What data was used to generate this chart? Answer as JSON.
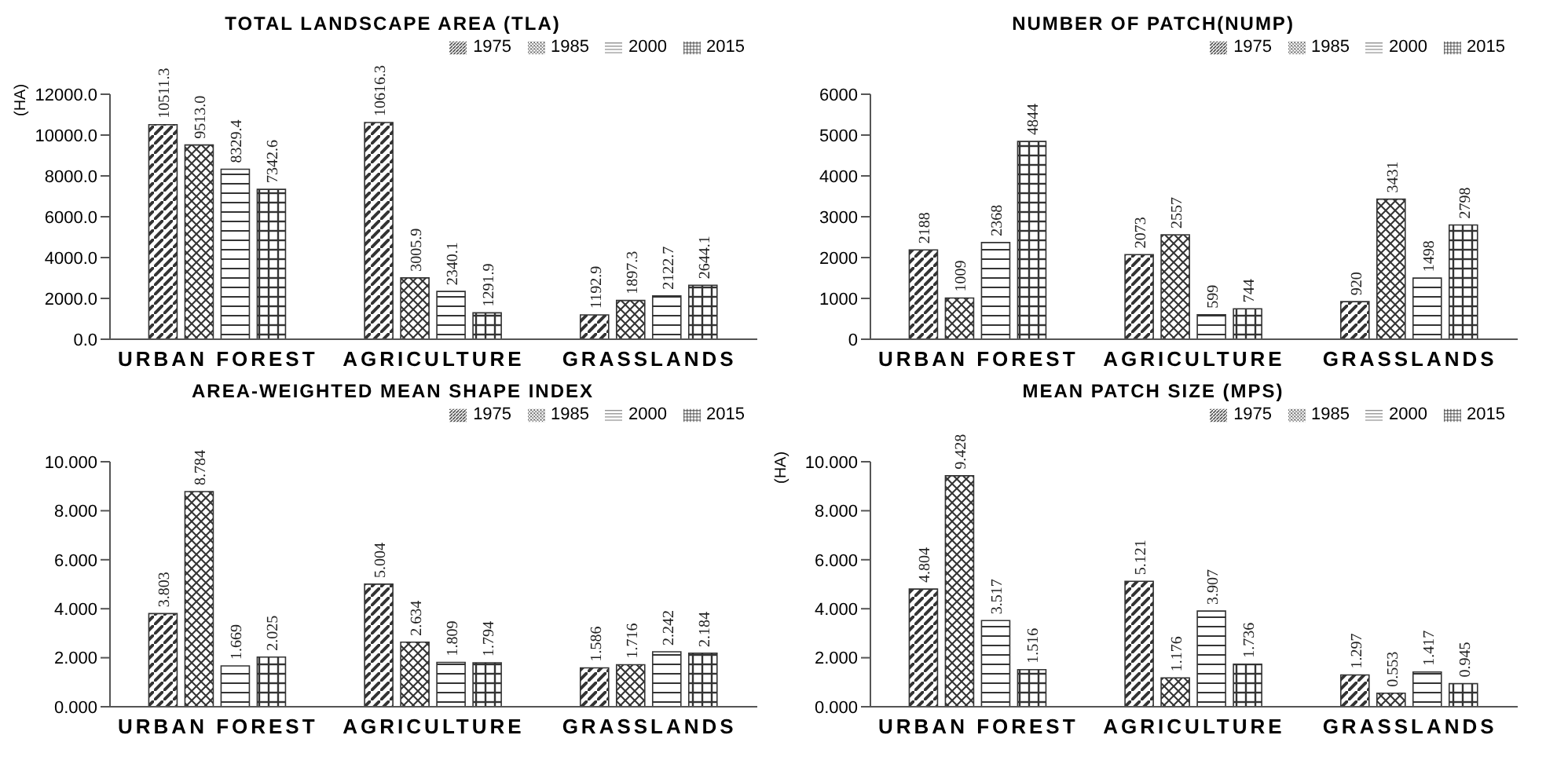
{
  "chart_data": [
    {
      "type": "bar",
      "title": "TOTAL LANDSCAPE AREA (TLA)",
      "ylabel": "(HA)",
      "categories": [
        "URBAN FOREST",
        "AGRICULTURE",
        "GRASSLANDS"
      ],
      "series": [
        {
          "name": "1975",
          "color": "#333333",
          "values": [
            10511.3,
            10616.3,
            1192.9
          ],
          "value_labels": [
            "10511.3",
            "10616.3",
            "1192.9"
          ]
        },
        {
          "name": "1985",
          "color": "#333333",
          "values": [
            9513.0,
            3005.9,
            1897.3
          ],
          "value_labels": [
            "9513.0",
            "3005.9",
            "1897.3"
          ]
        },
        {
          "name": "2000",
          "color": "#333333",
          "values": [
            8329.4,
            2340.1,
            2122.7
          ],
          "value_labels": [
            "8329.4",
            "2340.1",
            "2122.7"
          ]
        },
        {
          "name": "2015",
          "color": "#333333",
          "values": [
            7342.6,
            1291.9,
            2644.1
          ],
          "value_labels": [
            "7342.6",
            "1291.9",
            "2644.1"
          ]
        }
      ],
      "ylim": [
        0,
        12000
      ],
      "yticks": [
        {
          "value": 0,
          "label": "0.0"
        },
        {
          "value": 2000,
          "label": "2000.0"
        },
        {
          "value": 4000,
          "label": "4000.0"
        },
        {
          "value": 6000,
          "label": "6000.0"
        },
        {
          "value": 8000,
          "label": "8000.0"
        },
        {
          "value": 10000,
          "label": "10000.0"
        },
        {
          "value": 12000,
          "label": "12000.0"
        }
      ],
      "legend": "top right"
    },
    {
      "type": "bar",
      "title": "NUMBER OF PATCH(NUMP)",
      "categories": [
        "URBAN FOREST",
        "AGRICULTURE",
        "GRASSLANDS"
      ],
      "series": [
        {
          "name": "1975",
          "color": "#333333",
          "values": [
            2188,
            2073,
            920
          ]
        },
        {
          "name": "1985",
          "color": "#333333",
          "values": [
            1009,
            2557,
            3431
          ]
        },
        {
          "name": "2000",
          "color": "#333333",
          "values": [
            2368,
            599,
            1498
          ]
        },
        {
          "name": "2015",
          "color": "#333333",
          "values": [
            4844,
            744,
            2798
          ]
        }
      ],
      "ylim": [
        0,
        6000
      ],
      "yticks": [
        0,
        1000,
        2000,
        3000,
        4000,
        5000,
        6000
      ],
      "data_labels": true,
      "legend": "top right"
    },
    {
      "type": "bar",
      "title": "AREA-WEIGHTED MEAN SHAPE INDEX",
      "categories": [
        "URBAN FOREST",
        "AGRICULTURE",
        "GRASSLANDS"
      ],
      "series": [
        {
          "name": "1975",
          "color": "#333333",
          "values": [
            3.803,
            5.004,
            1.586
          ]
        },
        {
          "name": "1985",
          "color": "#333333",
          "values": [
            8.784,
            2.634,
            1.716
          ]
        },
        {
          "name": "2000",
          "color": "#333333",
          "values": [
            1.669,
            1.809,
            2.242
          ]
        },
        {
          "name": "2015",
          "color": "#333333",
          "values": [
            2.025,
            1.794,
            2.184
          ]
        }
      ],
      "ylim": [
        0,
        10
      ],
      "yticks": [
        {
          "value": 0,
          "label": "0.000"
        },
        {
          "value": 2,
          "label": "2.000"
        },
        {
          "value": 4,
          "label": "4.000"
        },
        {
          "value": 6,
          "label": "6.000"
        },
        {
          "value": 8,
          "label": "8.000"
        },
        {
          "value": 10,
          "label": "10.000"
        }
      ],
      "data_labels": true,
      "legend": "top right"
    },
    {
      "type": "bar",
      "title": "MEAN PATCH SIZE (MPS)",
      "ylabel": "(HA)",
      "categories": [
        "URBAN FOREST",
        "AGRICULTURE",
        "GRASSLANDS"
      ],
      "series": [
        {
          "name": "1975",
          "color": "#333333",
          "values": [
            4.804,
            5.121,
            1.297
          ]
        },
        {
          "name": "1985",
          "color": "#333333",
          "values": [
            9.428,
            1.176,
            0.553
          ]
        },
        {
          "name": "2000",
          "color": "#333333",
          "values": [
            3.517,
            3.907,
            1.417
          ]
        },
        {
          "name": "2015",
          "color": "#333333",
          "values": [
            1.516,
            1.736,
            0.945
          ]
        }
      ],
      "ylim": [
        0,
        10
      ],
      "yticks": [
        {
          "value": 0,
          "label": "0.000"
        },
        {
          "value": 2,
          "label": "2.000"
        },
        {
          "value": 4,
          "label": "4.000"
        },
        {
          "value": 6,
          "label": "6.000"
        },
        {
          "value": 8,
          "label": "8.000"
        },
        {
          "value": 10,
          "label": "10.000"
        }
      ],
      "data_labels": true,
      "legend": "top right"
    }
  ]
}
